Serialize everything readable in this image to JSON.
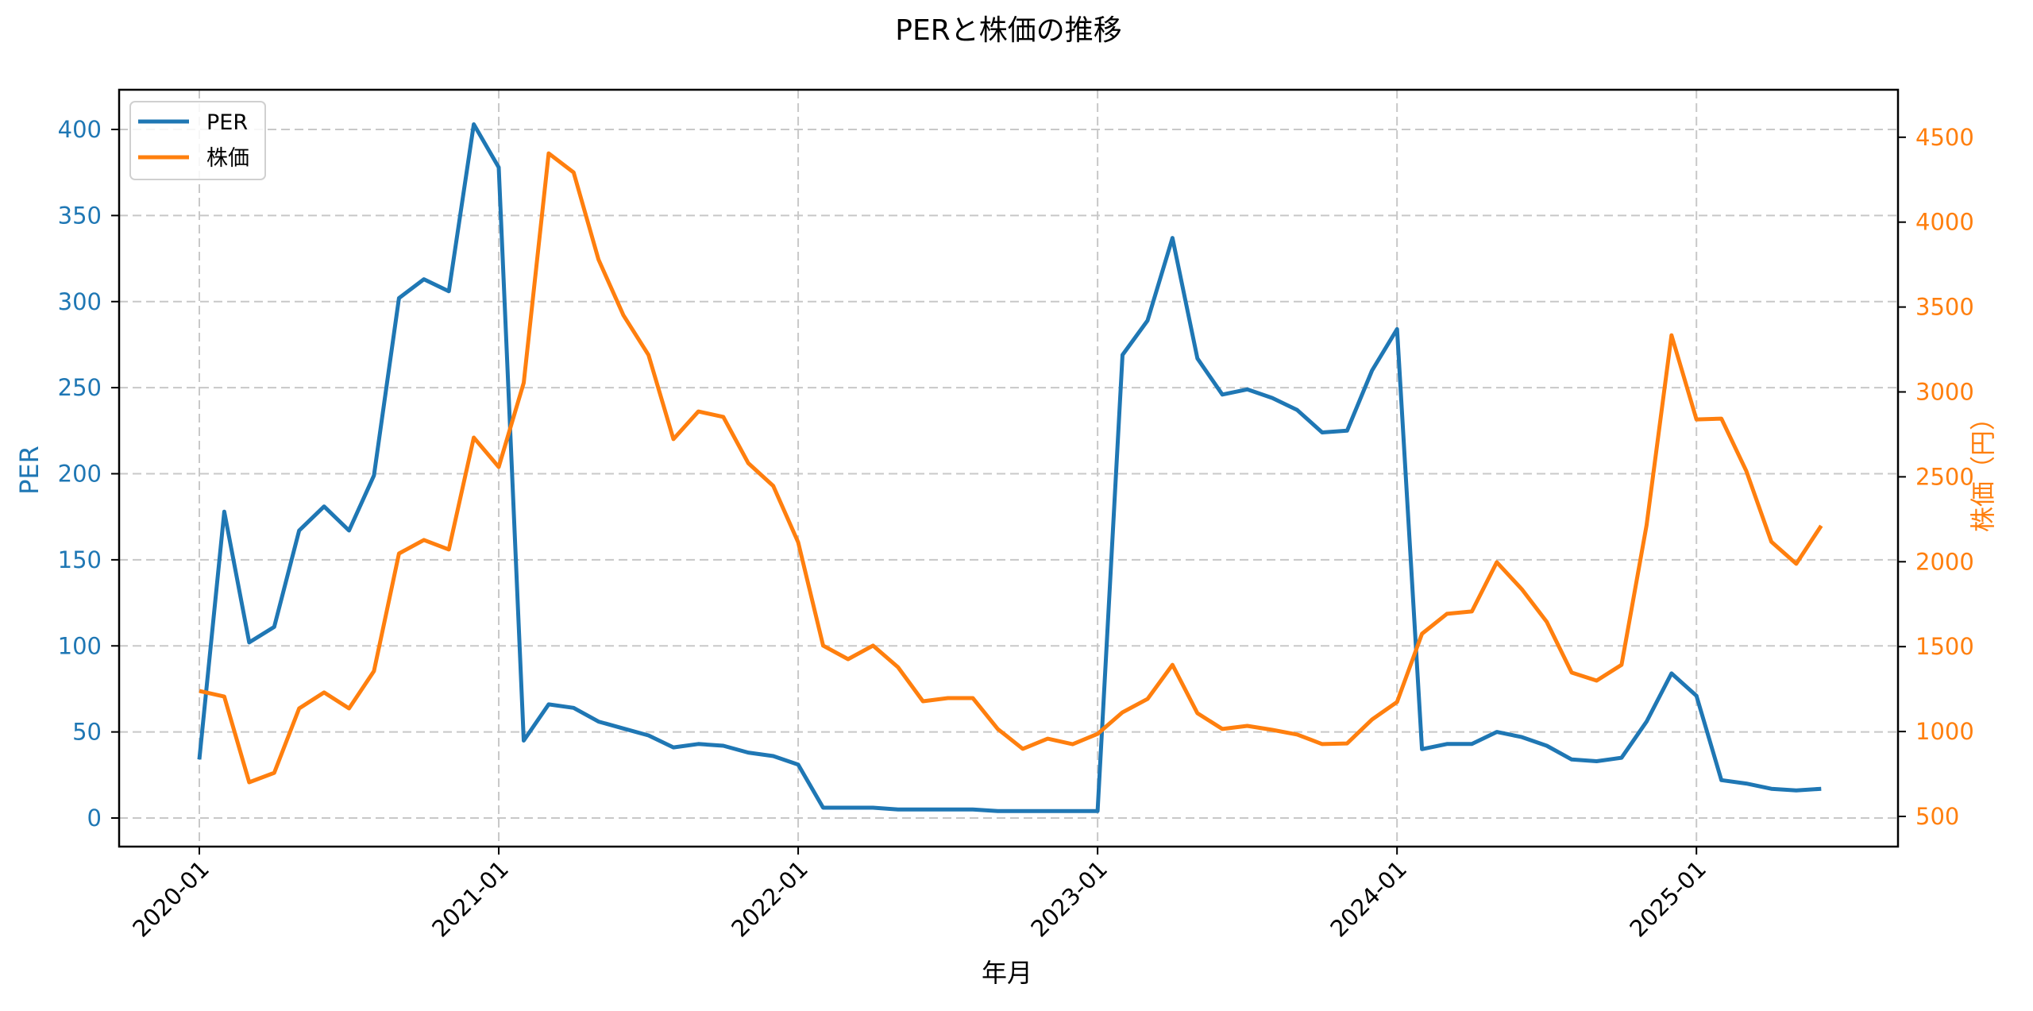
{
  "chart_data": {
    "type": "line",
    "title": "PERと株価の推移",
    "xlabel": "年月",
    "ylabel": "PER",
    "ylabel_right": "株価（円）",
    "x": [
      "2020-01",
      "2020-02",
      "2020-03",
      "2020-04",
      "2020-05",
      "2020-06",
      "2020-07",
      "2020-08",
      "2020-09",
      "2020-10",
      "2020-11",
      "2020-12",
      "2021-01",
      "2021-02",
      "2021-03",
      "2021-04",
      "2021-05",
      "2021-06",
      "2021-07",
      "2021-08",
      "2021-09",
      "2021-10",
      "2021-11",
      "2021-12",
      "2022-01",
      "2022-02",
      "2022-03",
      "2022-04",
      "2022-05",
      "2022-06",
      "2022-07",
      "2022-08",
      "2022-09",
      "2022-10",
      "2022-11",
      "2022-12",
      "2023-01",
      "2023-02",
      "2023-03",
      "2023-04",
      "2023-05",
      "2023-06",
      "2023-07",
      "2023-08",
      "2023-09",
      "2023-10",
      "2023-11",
      "2023-12",
      "2024-01",
      "2024-02",
      "2024-03",
      "2024-04",
      "2024-05",
      "2024-06",
      "2024-07",
      "2024-08",
      "2024-09",
      "2024-10",
      "2024-11",
      "2024-12",
      "2025-01",
      "2025-02",
      "2025-03",
      "2025-04",
      "2025-05",
      "2025-06"
    ],
    "series": [
      {
        "name": "PER",
        "axis": "left",
        "color": "#1f77b4",
        "values": [
          34,
          178,
          102,
          111,
          167,
          181,
          167,
          199,
          302,
          313,
          306,
          403,
          378,
          45,
          66,
          64,
          56,
          52,
          48,
          41,
          43,
          42,
          38,
          36,
          31,
          6,
          6,
          6,
          5,
          5,
          5,
          5,
          4,
          4,
          4,
          4,
          4,
          269,
          289,
          337,
          267,
          246,
          249,
          244,
          237,
          224,
          225,
          260,
          284,
          40,
          43,
          43,
          50,
          47,
          42,
          34,
          33,
          35,
          56,
          84,
          71,
          22,
          20,
          17,
          16,
          17
        ]
      },
      {
        "name": "株価",
        "axis": "right",
        "color": "#ff7f0e",
        "values": [
          1239,
          1206,
          701,
          757,
          1136,
          1230,
          1136,
          1356,
          2048,
          2128,
          2072,
          2731,
          2558,
          3054,
          4405,
          4293,
          3779,
          3451,
          3218,
          2722,
          2885,
          2853,
          2581,
          2446,
          2114,
          1506,
          1426,
          1506,
          1379,
          1178,
          1197,
          1197,
          1015,
          898,
          958,
          925,
          986,
          1113,
          1192,
          1393,
          1108,
          1015,
          1033,
          1010,
          982,
          926,
          930,
          1071,
          1174,
          1576,
          1693,
          1707,
          1997,
          1838,
          1646,
          1347,
          1300,
          1393,
          2215,
          3334,
          2838,
          2843,
          2534,
          2118,
          1988,
          2212
        ]
      }
    ],
    "x_ticks": [
      "2020-01",
      "2021-01",
      "2022-01",
      "2023-01",
      "2024-01",
      "2025-01"
    ],
    "y_ticks_left": [
      0,
      50,
      100,
      150,
      200,
      250,
      300,
      350,
      400
    ],
    "y_ticks_right": [
      500,
      1000,
      1500,
      2000,
      2500,
      3000,
      3500,
      4000,
      4500
    ],
    "ylim": [
      -16.6,
      423
    ],
    "ylim_right": [
      322,
      4780
    ],
    "grid": true,
    "grid_style": "dashed",
    "legend_position": "upper left",
    "legend": [
      "PER",
      "株価"
    ]
  },
  "colors": {
    "per": "#1f77b4",
    "price": "#ff7f0e",
    "grid": "#c8c8c8",
    "axis": "#000000"
  }
}
